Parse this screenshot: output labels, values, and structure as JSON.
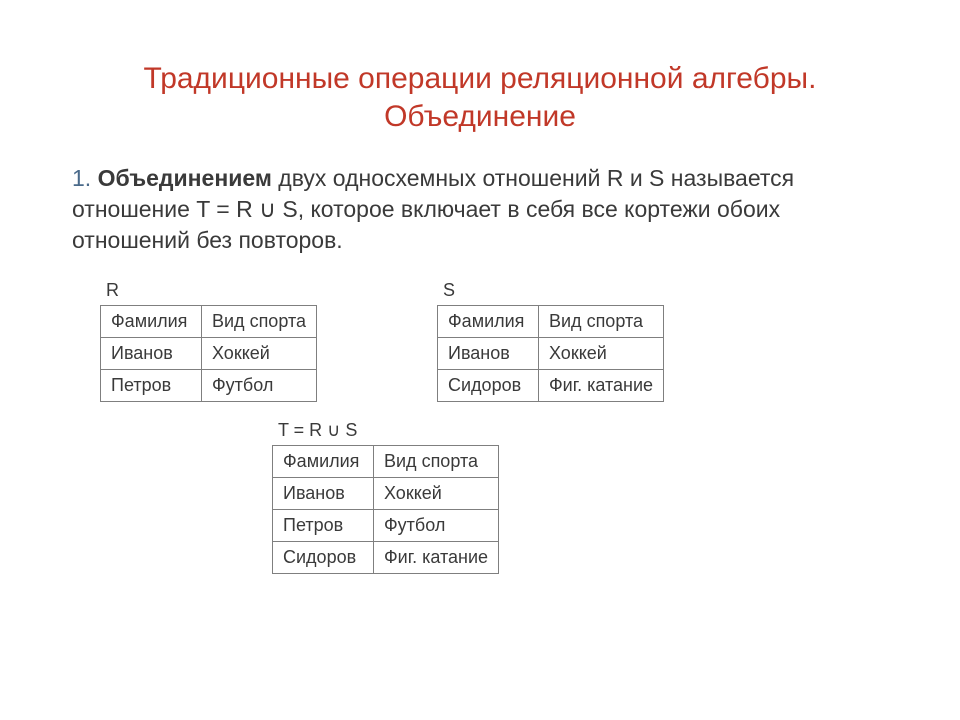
{
  "title": "Традиционные операции реляционной алгебры. Объединение",
  "body": {
    "num": "1.",
    "strong": "Объединением",
    "rest": " двух односхемных отношений R и S называется отношение T = R ∪ S, которое включает в себя все кортежи обоих отношений без повторов."
  },
  "tables": {
    "R": {
      "label": "R",
      "columns": [
        "Фамилия",
        "Вид спорта"
      ],
      "rows": [
        [
          "Иванов",
          "Хоккей"
        ],
        [
          "Петров",
          "Футбол"
        ]
      ]
    },
    "S": {
      "label": "S",
      "columns": [
        "Фамилия",
        "Вид спорта"
      ],
      "rows": [
        [
          "Иванов",
          "Хоккей"
        ],
        [
          "Сидоров",
          "Фиг. катание"
        ]
      ]
    },
    "T": {
      "label": "T = R ∪ S",
      "columns": [
        "Фамилия",
        "Вид спорта"
      ],
      "rows": [
        [
          "Иванов",
          "Хоккей"
        ],
        [
          "Петров",
          "Футбол"
        ],
        [
          "Сидоров",
          "Фиг. катание"
        ]
      ]
    }
  },
  "style": {
    "title_color": "#c13828",
    "text_color": "#3a3a3a",
    "num_color": "#4a6a8a",
    "border_color": "#7f7f7f",
    "background": "#ffffff",
    "title_fontsize": 30,
    "body_fontsize": 23,
    "table_fontsize": 18
  }
}
